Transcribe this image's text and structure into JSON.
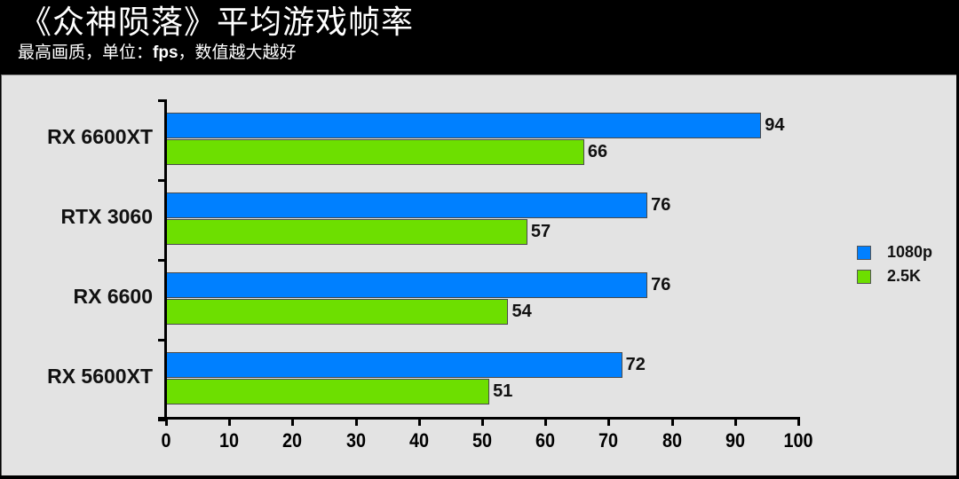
{
  "header": {
    "title": "《众神陨落》平均游戏帧率",
    "subtitle_pre": "最高画质，单位：",
    "subtitle_unit": "fps",
    "subtitle_post": "，数值越大越好"
  },
  "colors": {
    "1080p": "#0080ff",
    "2.5K": "#6ddf00",
    "panel": "#e3e3e3",
    "background": "#000000"
  },
  "chart_data": {
    "type": "bar",
    "orientation": "horizontal",
    "title": "《众神陨落》平均游戏帧率",
    "subtitle": "最高画质，单位：fps，数值越大越好",
    "categories": [
      "RX 6600XT",
      "RTX 3060",
      "RX 6600",
      "RX 5600XT"
    ],
    "series": [
      {
        "name": "1080p",
        "color": "#0080ff",
        "values": [
          94,
          76,
          76,
          72
        ]
      },
      {
        "name": "2.5K",
        "color": "#6ddf00",
        "values": [
          66,
          57,
          54,
          51
        ]
      }
    ],
    "xlabel": "",
    "ylabel": "",
    "xlim": [
      0,
      100
    ],
    "xticks": [
      0,
      10,
      20,
      30,
      40,
      50,
      60,
      70,
      80,
      90,
      100
    ],
    "grid": false,
    "legend_position": "right",
    "data_labels": true
  }
}
